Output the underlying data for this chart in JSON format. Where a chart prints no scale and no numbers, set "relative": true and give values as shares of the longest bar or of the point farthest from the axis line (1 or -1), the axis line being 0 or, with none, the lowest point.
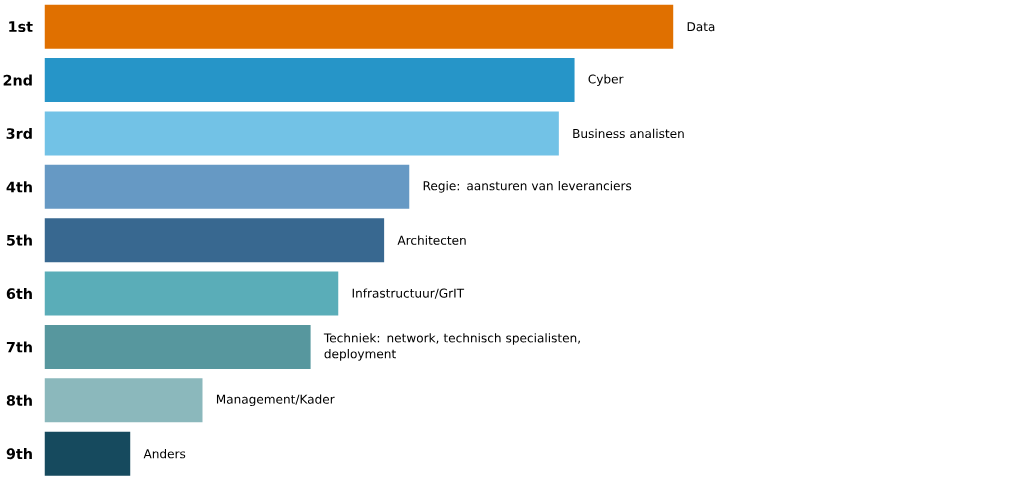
{
  "chart_data": {
    "type": "bar",
    "orientation": "horizontal",
    "relative": true,
    "categories": [
      "1st",
      "2nd",
      "3rd",
      "4th",
      "5th",
      "6th",
      "7th",
      "8th",
      "9th"
    ],
    "values": [
      1,
      0.843,
      0.818,
      0.58,
      0.54,
      0.467,
      0.423,
      0.251,
      0.136
    ],
    "colors": [
      "#e07000",
      "#2695c8",
      "#72c2e6",
      "#6699c4",
      "#386890",
      "#5aadb8",
      "#57979e",
      "#8bb8bc",
      "#164a5e"
    ],
    "annotations": [
      {
        "text": "Data",
        "x": 1,
        "y": "1st"
      },
      {
        "text": "Cyber",
        "x": 0.843,
        "y": "2nd"
      },
      {
        "text": "Business analisten",
        "x": 0.818,
        "y": "3rd"
      },
      {
        "text": "Regie: aansturen van leveranciers",
        "x": 0.58,
        "y": "4th"
      },
      {
        "text": "Architecten",
        "x": 0.54,
        "y": "5th"
      },
      {
        "text": "Infrastructuur/GrIT",
        "x": 0.467,
        "y": "6th"
      },
      {
        "text": "Techniek: network, technisch specialisten, deployment",
        "x": 0.423,
        "y": "7th"
      },
      {
        "text": "Management/Kader",
        "x": 0.251,
        "y": "8th"
      },
      {
        "text": "Anders",
        "x": 0.136,
        "y": "9th"
      }
    ]
  }
}
